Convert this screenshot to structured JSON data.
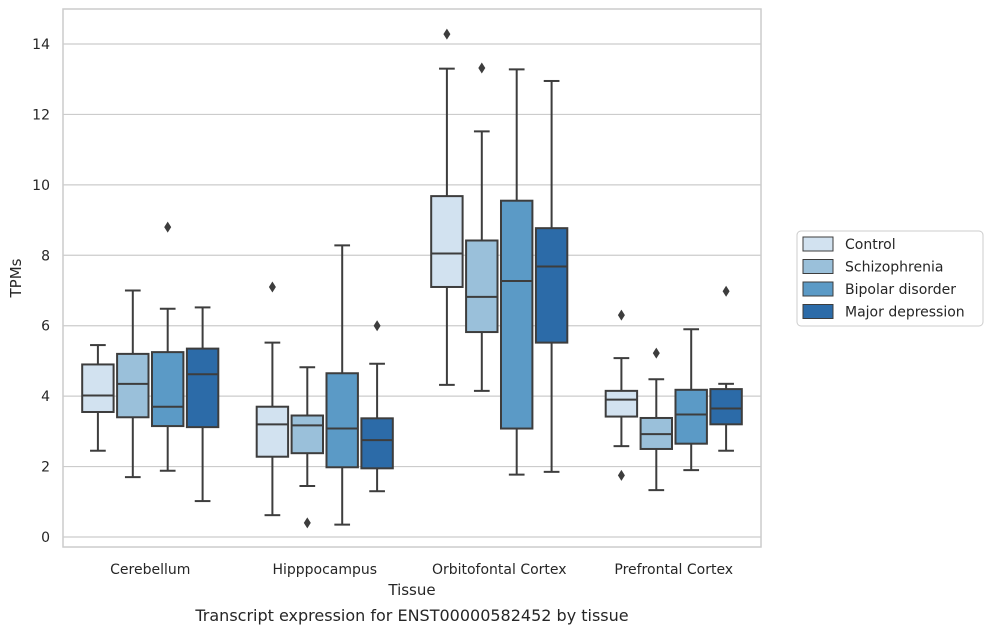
{
  "chart_data": {
    "type": "box",
    "title": "Transcript expression for ENST00000582452 by tissue",
    "xlabel": "Tissue",
    "ylabel": "TPMs",
    "ylim": [
      -0.3,
      15
    ],
    "yticks": [
      0,
      2,
      4,
      6,
      8,
      10,
      12,
      14
    ],
    "grid": "horizontal",
    "legend_placement": "right",
    "categories": [
      "Cerebellum",
      "Hipppocampus",
      "Orbitofontal Cortex",
      "Prefrontal Cortex"
    ],
    "series": [
      {
        "name": "Control",
        "color": "#d2e2f0",
        "boxes": [
          {
            "whislo": 2.45,
            "q1": 3.55,
            "med": 4.02,
            "q3": 4.9,
            "whishi": 5.45,
            "fliers": []
          },
          {
            "whislo": 0.62,
            "q1": 2.28,
            "med": 3.2,
            "q3": 3.7,
            "whishi": 5.52,
            "fliers": [
              7.1
            ]
          },
          {
            "whislo": 4.32,
            "q1": 7.1,
            "med": 8.05,
            "q3": 9.68,
            "whishi": 13.3,
            "fliers": [
              14.28
            ]
          },
          {
            "whislo": 2.58,
            "q1": 3.42,
            "med": 3.9,
            "q3": 4.15,
            "whishi": 5.08,
            "fliers": [
              1.75,
              6.3
            ]
          }
        ]
      },
      {
        "name": "Schizophrenia",
        "color": "#9ac0da",
        "boxes": [
          {
            "whislo": 1.7,
            "q1": 3.4,
            "med": 4.35,
            "q3": 5.2,
            "whishi": 7.0,
            "fliers": []
          },
          {
            "whislo": 1.45,
            "q1": 2.38,
            "med": 3.17,
            "q3": 3.45,
            "whishi": 4.82,
            "fliers": [
              0.4
            ]
          },
          {
            "whislo": 4.15,
            "q1": 5.82,
            "med": 6.82,
            "q3": 8.42,
            "whishi": 11.52,
            "fliers": [
              13.32
            ]
          },
          {
            "whislo": 1.33,
            "q1": 2.5,
            "med": 2.92,
            "q3": 3.38,
            "whishi": 4.48,
            "fliers": [
              5.22
            ]
          }
        ]
      },
      {
        "name": "Bipolar disorder",
        "color": "#5b9ac6",
        "boxes": [
          {
            "whislo": 1.88,
            "q1": 3.15,
            "med": 3.7,
            "q3": 5.25,
            "whishi": 6.48,
            "fliers": [
              8.8
            ]
          },
          {
            "whislo": 0.35,
            "q1": 1.98,
            "med": 3.08,
            "q3": 4.65,
            "whishi": 8.28,
            "fliers": []
          },
          {
            "whislo": 1.77,
            "q1": 3.08,
            "med": 7.27,
            "q3": 9.55,
            "whishi": 13.28,
            "fliers": []
          },
          {
            "whislo": 1.9,
            "q1": 2.65,
            "med": 3.48,
            "q3": 4.18,
            "whishi": 5.9,
            "fliers": []
          }
        ]
      },
      {
        "name": "Major depression",
        "color": "#2c6ba8",
        "boxes": [
          {
            "whislo": 1.02,
            "q1": 3.12,
            "med": 4.62,
            "q3": 5.35,
            "whishi": 6.52,
            "fliers": []
          },
          {
            "whislo": 1.3,
            "q1": 1.95,
            "med": 2.75,
            "q3": 3.37,
            "whishi": 4.92,
            "fliers": [
              6.0
            ]
          },
          {
            "whislo": 1.85,
            "q1": 5.52,
            "med": 7.68,
            "q3": 8.77,
            "whishi": 12.95,
            "fliers": []
          },
          {
            "whislo": 2.45,
            "q1": 3.2,
            "med": 3.65,
            "q3": 4.2,
            "whishi": 4.35,
            "fliers": [
              6.98
            ]
          }
        ]
      }
    ]
  }
}
